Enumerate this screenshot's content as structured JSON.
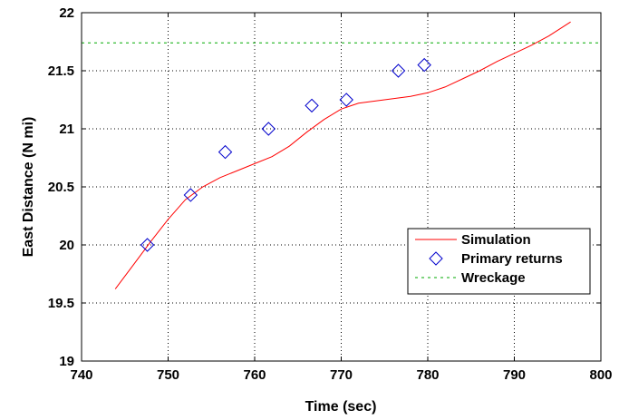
{
  "chart_data": {
    "type": "line",
    "title": "",
    "xlabel": "Time (sec)",
    "ylabel": "East Distance (N mi)",
    "xlim": [
      740,
      800
    ],
    "ylim": [
      19,
      22
    ],
    "x_ticks": [
      "740",
      "750",
      "760",
      "770",
      "780",
      "790",
      "800"
    ],
    "y_ticks": [
      "19",
      "19.5",
      "20",
      "20.5",
      "21",
      "21.5",
      "22"
    ],
    "grid": true,
    "legend_position": "lower-right",
    "series": [
      {
        "name": "Simulation",
        "style": "line",
        "color": "#ff0000",
        "x": [
          743.9,
          746,
          748,
          750,
          752,
          754,
          756,
          758,
          760,
          762,
          764,
          766,
          768,
          770,
          772,
          774,
          776,
          778,
          780,
          782,
          784,
          786,
          788,
          790,
          792,
          794,
          796.5
        ],
        "y": [
          19.62,
          19.83,
          20.03,
          20.22,
          20.39,
          20.5,
          20.58,
          20.64,
          20.7,
          20.76,
          20.85,
          20.97,
          21.08,
          21.17,
          21.22,
          21.24,
          21.26,
          21.28,
          21.31,
          21.36,
          21.43,
          21.5,
          21.58,
          21.65,
          21.72,
          21.8,
          21.92
        ]
      },
      {
        "name": "Primary returns",
        "style": "marker",
        "color": "#0000cc",
        "x": [
          747.6,
          752.6,
          756.6,
          761.6,
          766.6,
          770.6,
          776.6,
          779.6
        ],
        "y": [
          20.0,
          20.43,
          20.8,
          21.0,
          21.2,
          21.25,
          21.5,
          21.55
        ]
      },
      {
        "name": "Wreckage",
        "style": "dashed",
        "color": "#00aa00",
        "x": [
          740,
          800
        ],
        "y": [
          21.74,
          21.74
        ]
      }
    ]
  }
}
